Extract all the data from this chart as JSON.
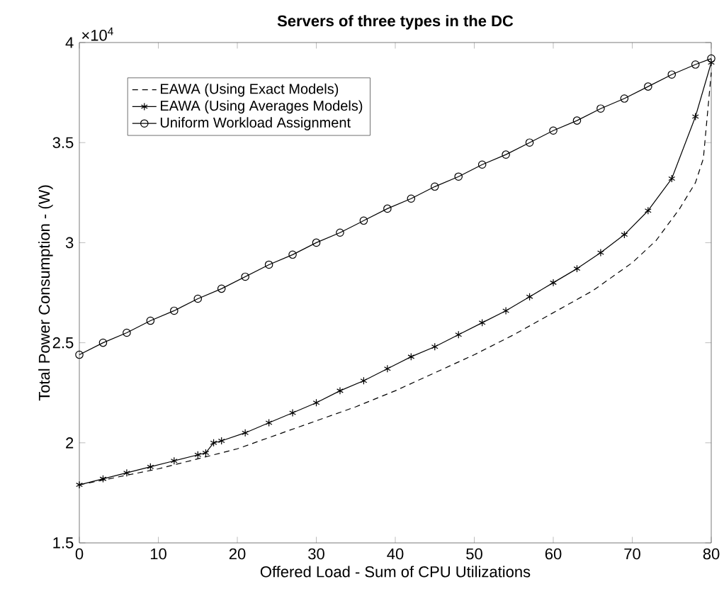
{
  "chart_data": {
    "type": "line",
    "title": "Servers of three types in the DC",
    "xlabel": "Offered Load - Sum of CPU Utilizations",
    "ylabel": "Total Power Consumption - (W)",
    "annotations": [
      "×10$^{4}$"
    ],
    "xlim": [
      0,
      80
    ],
    "ylim": [
      1.5,
      4
    ],
    "xticks": [
      0,
      10,
      20,
      30,
      40,
      50,
      60,
      70,
      80
    ],
    "yticks": [
      1.5,
      2,
      2.5,
      3,
      3.5,
      4
    ],
    "legend": "top left",
    "grid": false,
    "series": [
      {
        "name": "EAWA (Using Exact Models)",
        "color": "#000000",
        "line_style": "dashed",
        "marker": "none",
        "x": [
          0,
          5,
          10,
          15,
          20,
          25,
          30,
          35,
          40,
          45,
          50,
          55,
          60,
          65,
          70,
          73,
          76,
          78,
          79,
          80
        ],
        "values": [
          1.79,
          1.83,
          1.87,
          1.92,
          1.97,
          2.04,
          2.11,
          2.18,
          2.26,
          2.35,
          2.44,
          2.54,
          2.65,
          2.76,
          2.9,
          3.01,
          3.17,
          3.3,
          3.42,
          3.85
        ]
      },
      {
        "name": "EAWA (Using Averages Models)",
        "color": "#000000",
        "line_style": "solid",
        "marker": "cross",
        "x": [
          0,
          3,
          6,
          9,
          12,
          15,
          16,
          17,
          18,
          21,
          24,
          27,
          30,
          33,
          36,
          39,
          42,
          45,
          48,
          51,
          54,
          57,
          60,
          63,
          66,
          69,
          72,
          75,
          78,
          80
        ],
        "values": [
          1.79,
          1.82,
          1.85,
          1.88,
          1.91,
          1.94,
          1.95,
          2.0,
          2.01,
          2.05,
          2.1,
          2.15,
          2.2,
          2.26,
          2.31,
          2.37,
          2.43,
          2.48,
          2.54,
          2.6,
          2.66,
          2.73,
          2.8,
          2.87,
          2.95,
          3.04,
          3.16,
          3.32,
          3.63,
          3.9
        ]
      },
      {
        "name": "Uniform Workload Assignment",
        "color": "#000000",
        "line_style": "solid",
        "marker": "circle",
        "x": [
          0,
          3,
          6,
          9,
          12,
          15,
          18,
          21,
          24,
          27,
          30,
          33,
          36,
          39,
          42,
          45,
          48,
          51,
          54,
          57,
          60,
          63,
          66,
          69,
          72,
          75,
          78,
          80
        ],
        "values": [
          2.44,
          2.5,
          2.55,
          2.61,
          2.66,
          2.72,
          2.77,
          2.83,
          2.89,
          2.94,
          3.0,
          3.05,
          3.11,
          3.17,
          3.22,
          3.28,
          3.33,
          3.39,
          3.44,
          3.5,
          3.56,
          3.61,
          3.67,
          3.72,
          3.78,
          3.84,
          3.89,
          3.92
        ]
      }
    ]
  }
}
